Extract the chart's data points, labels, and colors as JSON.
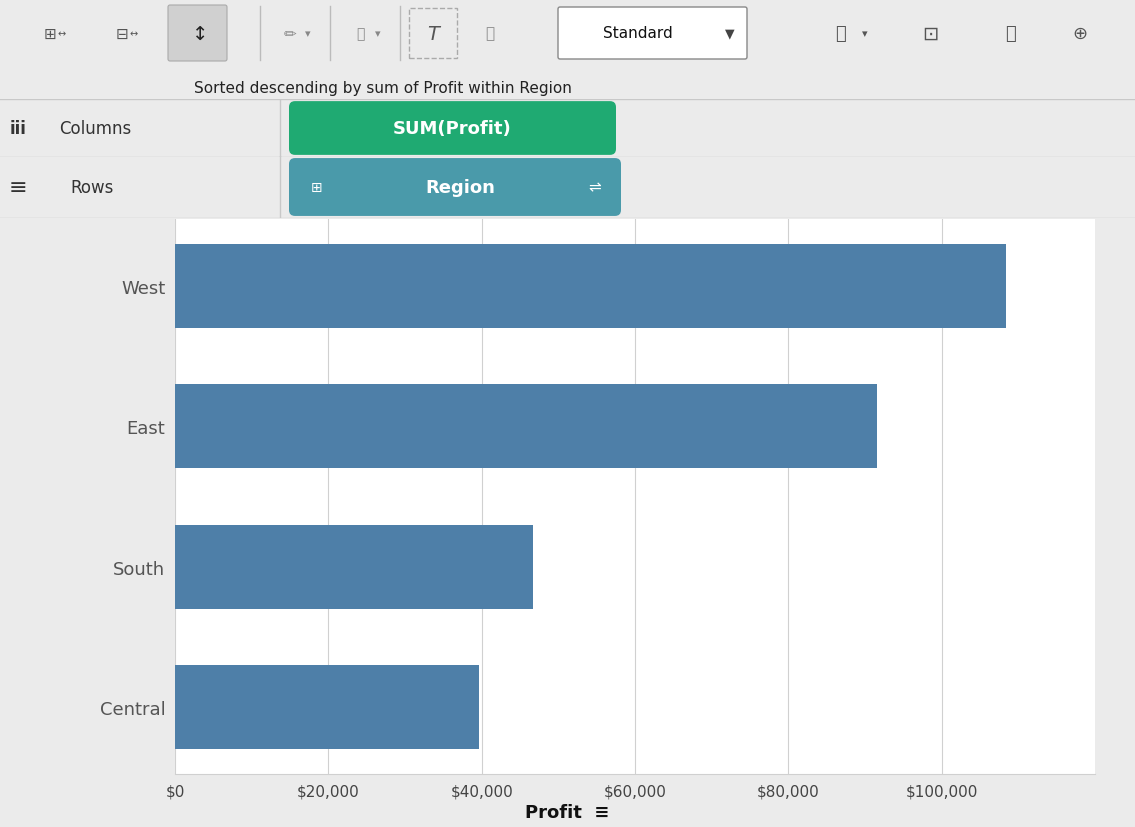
{
  "categories": [
    "West",
    "East",
    "South",
    "Central"
  ],
  "values": [
    108418,
    91523,
    46749,
    39706
  ],
  "bar_color": "#4e7fa8",
  "background_color": "#ebebeb",
  "chart_bg_color": "#ffffff",
  "xlabel": "Profit",
  "xlim": [
    0,
    120000
  ],
  "xtick_values": [
    0,
    20000,
    40000,
    60000,
    80000,
    100000
  ],
  "xtick_labels": [
    "$0",
    "$20,000",
    "$40,000",
    "$60,000",
    "$80,000",
    "$100,000"
  ],
  "ylabel_color": "#555555",
  "tick_label_color": "#444444",
  "xlabel_color": "#111111",
  "toolbar_bg": "#ebebeb",
  "tooltip_text": "Sorted descending by sum of Profit within Region",
  "columns_label": "Columns",
  "rows_label": "Rows",
  "sum_profit_pill": "SUM(Profit)",
  "region_pill": "Region",
  "sum_profit_color": "#1faa72",
  "region_color": "#4a9aaa",
  "grid_color": "#d0d0d0",
  "separator_color": "#c8c8c8",
  "axis_label_fontsize": 13,
  "tick_fontsize": 11,
  "category_fontsize": 13,
  "fig_width": 11.35,
  "fig_height": 8.28,
  "fig_dpi": 100
}
